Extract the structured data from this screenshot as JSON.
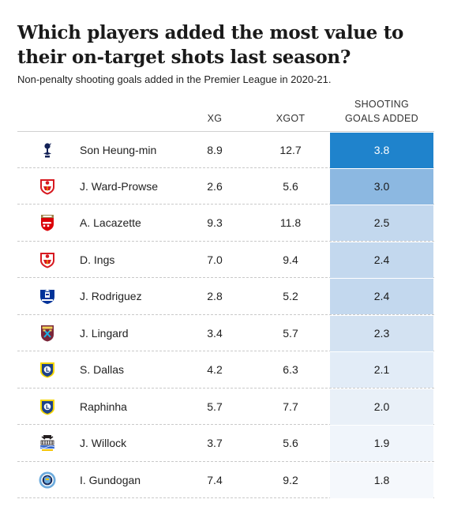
{
  "title": "Which players added the most value to their on-target shots last season?",
  "subtitle": "Non-penalty shooting goals added in the Premier League in 2020-21.",
  "chart_data": {
    "type": "table",
    "columns": [
      "",
      "",
      "XG",
      "XGOT",
      "SHOOTING GOALS ADDED"
    ],
    "rows": [
      {
        "club_logo": "tottenham-crest-icon",
        "player": "Son Heung-min",
        "xg": "8.9",
        "xgot": "12.7",
        "sga": "3.8",
        "sga_value": 3.8,
        "fill": "#1f83cc",
        "text_color": "#ffffff"
      },
      {
        "club_logo": "southampton-crest-icon",
        "player": "J. Ward-Prowse",
        "xg": "2.6",
        "xgot": "5.6",
        "sga": "3.0",
        "sga_value": 3.0,
        "fill": "#8cb8e1",
        "text_color": "#1a1a1a"
      },
      {
        "club_logo": "arsenal-crest-icon",
        "player": "A. Lacazette",
        "xg": "9.3",
        "xgot": "11.8",
        "sga": "2.5",
        "sga_value": 2.5,
        "fill": "#c3d8ee",
        "text_color": "#1a1a1a"
      },
      {
        "club_logo": "southampton-crest-icon",
        "player": "D. Ings",
        "xg": "7.0",
        "xgot": "9.4",
        "sga": "2.4",
        "sga_value": 2.4,
        "fill": "#c3d8ee",
        "text_color": "#1a1a1a"
      },
      {
        "club_logo": "everton-crest-icon",
        "player": "J. Rodriguez",
        "xg": "2.8",
        "xgot": "5.2",
        "sga": "2.4",
        "sga_value": 2.4,
        "fill": "#c3d8ee",
        "text_color": "#1a1a1a"
      },
      {
        "club_logo": "west-ham-crest-icon",
        "player": "J. Lingard",
        "xg": "3.4",
        "xgot": "5.7",
        "sga": "2.3",
        "sga_value": 2.3,
        "fill": "#d3e2f2",
        "text_color": "#1a1a1a"
      },
      {
        "club_logo": "leeds-crest-icon",
        "player": "S. Dallas",
        "xg": "4.2",
        "xgot": "6.3",
        "sga": "2.1",
        "sga_value": 2.1,
        "fill": "#e2ecf7",
        "text_color": "#1a1a1a"
      },
      {
        "club_logo": "leeds-crest-icon",
        "player": "Raphinha",
        "xg": "5.7",
        "xgot": "7.7",
        "sga": "2.0",
        "sga_value": 2.0,
        "fill": "#e9f0f8",
        "text_color": "#1a1a1a"
      },
      {
        "club_logo": "newcastle-crest-icon",
        "player": "J. Willock",
        "xg": "3.7",
        "xgot": "5.6",
        "sga": "1.9",
        "sga_value": 1.9,
        "fill": "#f0f5fb",
        "text_color": "#1a1a1a"
      },
      {
        "club_logo": "man-city-crest-icon",
        "player": "I. Gundogan",
        "xg": "7.4",
        "xgot": "9.2",
        "sga": "1.8",
        "sga_value": 1.8,
        "fill": "#f5f8fc",
        "text_color": "#1a1a1a"
      }
    ]
  },
  "header": {
    "xg": "XG",
    "xgot": "XGOT",
    "sga_line1": "SHOOTING",
    "sga_line2": "GOALS ADDED"
  }
}
